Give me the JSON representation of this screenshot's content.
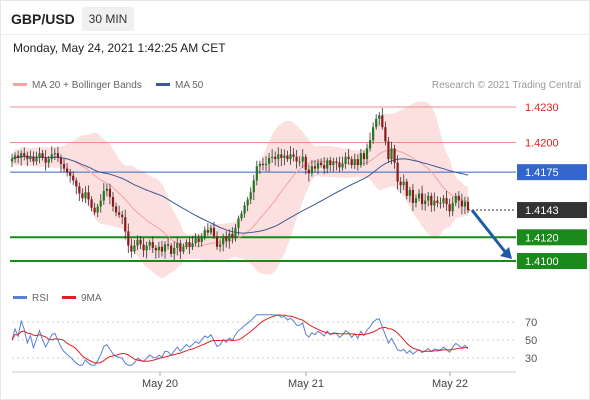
{
  "header": {
    "symbol": "GBP/USD",
    "timeframe": "30 MIN"
  },
  "datetime": "Monday, May 24, 2021 1:42:25 AM CET",
  "legend": [
    {
      "label": "MA 20 + Bollinger Bands",
      "color": "#f4a3a3"
    },
    {
      "label": "MA 50",
      "color": "#3b5998"
    }
  ],
  "copyright": "Research © 2021 Trading Central",
  "rsi_legend": [
    {
      "label": "RSI",
      "color": "#5b7fd6"
    },
    {
      "label": "9MA",
      "color": "#e02020"
    }
  ],
  "chart_data": [
    {
      "type": "candlestick",
      "title": "",
      "x_tick_labels": [
        "May 20",
        "May 21",
        "May 22"
      ],
      "ylim": [
        1.4085,
        1.4245
      ],
      "price_levels": [
        {
          "value": 1.423,
          "label": "1.4230",
          "kind": "resistance",
          "color": "#f08c8c",
          "label_color": "#e02020"
        },
        {
          "value": 1.42,
          "label": "1.4200",
          "kind": "resistance",
          "color": "#f08c8c",
          "label_color": "#e02020"
        },
        {
          "value": 1.4175,
          "label": "1.4175",
          "kind": "pivot",
          "color": "#3366cc",
          "label_bg": "#3366cc"
        },
        {
          "value": 1.4143,
          "label": "1.4143",
          "kind": "last_price",
          "color": "#333333",
          "label_bg": "#333333"
        },
        {
          "value": 1.412,
          "label": "1.4120",
          "kind": "support",
          "color": "#1a8a1a",
          "label_bg": "#1a8a1a"
        },
        {
          "value": 1.41,
          "label": "1.4100",
          "kind": "support",
          "color": "#1a8a1a",
          "label_bg": "#1a8a1a"
        }
      ],
      "close_series": [
        1.4186,
        1.4189,
        1.4187,
        1.4191,
        1.4189,
        1.4186,
        1.4188,
        1.4184,
        1.4187,
        1.4191,
        1.4187,
        1.4183,
        1.4186,
        1.419,
        1.4191,
        1.4187,
        1.4182,
        1.4178,
        1.4175,
        1.4172,
        1.4168,
        1.4163,
        1.4157,
        1.4153,
        1.4158,
        1.4152,
        1.4145,
        1.4141,
        1.4146,
        1.4151,
        1.4159,
        1.4161,
        1.4154,
        1.4146,
        1.4141,
        1.4139,
        1.4137,
        1.4125,
        1.4113,
        1.4108,
        1.4113,
        1.4118,
        1.4114,
        1.4109,
        1.4113,
        1.4116,
        1.4111,
        1.4109,
        1.4112,
        1.4108,
        1.4114,
        1.4113,
        1.4106,
        1.4111,
        1.4115,
        1.4108,
        1.4112,
        1.4116,
        1.4112,
        1.4115,
        1.4119,
        1.4116,
        1.4121,
        1.4126,
        1.4124,
        1.4128,
        1.4121,
        1.4112,
        1.4114,
        1.4121,
        1.4117,
        1.4123,
        1.412,
        1.4128,
        1.4136,
        1.414,
        1.4147,
        1.4152,
        1.4158,
        1.4168,
        1.418,
        1.4182,
        1.4181,
        1.4182,
        1.4187,
        1.4188,
        1.4186,
        1.419,
        1.4187,
        1.4189,
        1.4186,
        1.419,
        1.4188,
        1.4184,
        1.4184,
        1.4188,
        1.4177,
        1.4174,
        1.418,
        1.4178,
        1.4183,
        1.4181,
        1.4178,
        1.4185,
        1.4181,
        1.4184,
        1.4183,
        1.4179,
        1.4182,
        1.4188,
        1.4186,
        1.4181,
        1.4186,
        1.4181,
        1.4191,
        1.4186,
        1.4195,
        1.4202,
        1.4213,
        1.422,
        1.4223,
        1.4213,
        1.4201,
        1.4186,
        1.4195,
        1.4183,
        1.4167,
        1.4164,
        1.4167,
        1.4155,
        1.416,
        1.4149,
        1.4153,
        1.4157,
        1.4148,
        1.4151,
        1.4155,
        1.4147,
        1.4151,
        1.4149,
        1.4149,
        1.4153,
        1.4148,
        1.4142,
        1.4149,
        1.4155,
        1.4151,
        1.4146,
        1.415,
        1.4143
      ],
      "series": [
        {
          "name": "MA 20 + Bollinger Bands",
          "color": "#f4a3a3"
        },
        {
          "name": "MA 50",
          "color": "#3b5998"
        }
      ],
      "projection": {
        "from": 1.4143,
        "to": 1.41,
        "color": "#1f5aa6"
      }
    },
    {
      "type": "line",
      "title": "",
      "ylim": [
        25,
        80
      ],
      "y_tick_labels": [
        "70",
        "50",
        "30"
      ],
      "y_ticks": [
        70,
        50,
        30
      ],
      "series": [
        {
          "name": "RSI",
          "color": "#5b7fd6"
        },
        {
          "name": "9MA",
          "color": "#e02020"
        }
      ]
    }
  ]
}
